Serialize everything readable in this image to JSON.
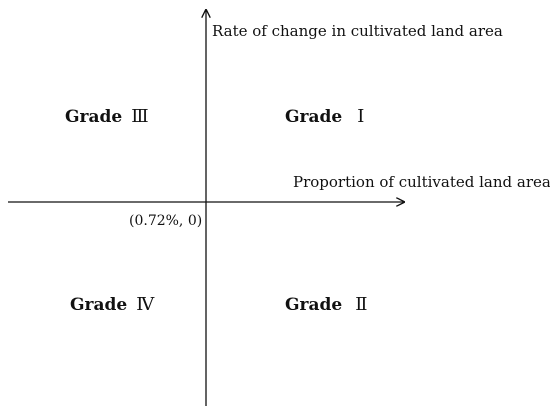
{
  "y_axis_label": "Rate of change in cultivated land area",
  "x_axis_label": "Proportion of cultivated land area",
  "origin_label": "(0.72%, 0)",
  "quadrants": {
    "top_left": {
      "word": "Grade",
      "numeral": "Ⅲ"
    },
    "top_right": {
      "word": "Grade",
      "numeral": "Ⅰ"
    },
    "bottom_left": {
      "word": "Grade",
      "numeral": "Ⅳ"
    },
    "bottom_right": {
      "word": "Grade",
      "numeral": "Ⅱ"
    }
  },
  "colors": {
    "ink": "#111111",
    "background": "#ffffff"
  }
}
